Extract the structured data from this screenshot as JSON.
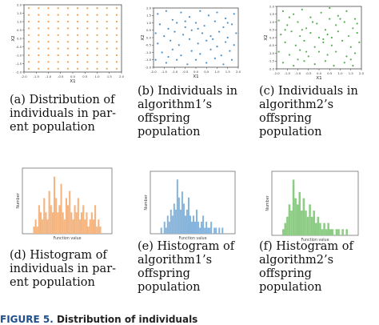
{
  "figure": {
    "label": "FIGURE 5.",
    "title": "Distribution of individuals"
  },
  "chart_data": [
    {
      "type": "scatter",
      "id": "a",
      "xlabel": "X1",
      "ylabel": "X2",
      "xlim": [
        -2,
        2
      ],
      "ylim": [
        -2,
        2
      ],
      "x_ticks": [
        "-2.0",
        "-1.5",
        "-1.0",
        "-0.5",
        "0.0",
        "0.5",
        "1.0",
        "1.5",
        "2.0"
      ],
      "y_ticks": [
        "-2.0",
        "-1.5",
        "-1.0",
        "-0.5",
        "0.0",
        "0.5",
        "1.0",
        "1.5",
        "2.0"
      ],
      "color": "#f0a050",
      "grid_points": {
        "x_start": -1.8,
        "x_step": 0.4,
        "count": 10,
        "y_start": -1.8,
        "y_step": 0.4
      }
    },
    {
      "type": "scatter",
      "id": "b",
      "xlabel": "X1",
      "ylabel": "X2",
      "xlim": [
        -2,
        2
      ],
      "ylim": [
        -2,
        2
      ],
      "x_ticks": [
        "-2.0",
        "-1.5",
        "-1.0",
        "-0.5",
        "0.0",
        "0.5",
        "1.0",
        "1.5",
        "2.0"
      ],
      "y_ticks": [
        "-2.0",
        "-1.5",
        "-1.0",
        "-0.5",
        "0.0",
        "0.5",
        "1.0",
        "1.5",
        "2.0"
      ],
      "color": "#4a90c8",
      "points": [
        [
          -1.8,
          1.6
        ],
        [
          -1.4,
          1.8
        ],
        [
          -1.1,
          1.2
        ],
        [
          -0.7,
          1.7
        ],
        [
          -0.3,
          1.4
        ],
        [
          0.2,
          1.8
        ],
        [
          0.6,
          1.5
        ],
        [
          1.0,
          1.7
        ],
        [
          1.4,
          1.3
        ],
        [
          1.8,
          1.6
        ],
        [
          -1.7,
          0.9
        ],
        [
          -1.3,
          0.6
        ],
        [
          -0.9,
          1.0
        ],
        [
          -0.5,
          0.7
        ],
        [
          0.0,
          1.0
        ],
        [
          0.4,
          0.8
        ],
        [
          0.9,
          1.1
        ],
        [
          1.3,
          0.7
        ],
        [
          1.7,
          0.9
        ],
        [
          -1.9,
          0.3
        ],
        [
          -1.5,
          0.1
        ],
        [
          -1.0,
          0.4
        ],
        [
          -0.6,
          0.2
        ],
        [
          -0.2,
          0.5
        ],
        [
          0.3,
          0.3
        ],
        [
          0.7,
          0.1
        ],
        [
          1.1,
          0.4
        ],
        [
          1.5,
          0.0
        ],
        [
          1.9,
          0.3
        ],
        [
          -1.8,
          -0.4
        ],
        [
          -1.2,
          -0.2
        ],
        [
          -0.8,
          -0.5
        ],
        [
          -0.3,
          -0.1
        ],
        [
          0.1,
          -0.4
        ],
        [
          0.5,
          -0.2
        ],
        [
          1.0,
          -0.6
        ],
        [
          1.4,
          -0.3
        ],
        [
          1.8,
          -0.5
        ],
        [
          -1.6,
          -1.0
        ],
        [
          -1.1,
          -0.8
        ],
        [
          -0.7,
          -1.2
        ],
        [
          -0.2,
          -0.9
        ],
        [
          0.2,
          -1.1
        ],
        [
          0.7,
          -0.8
        ],
        [
          1.2,
          -1.2
        ],
        [
          1.6,
          -0.9
        ],
        [
          -1.9,
          -1.5
        ],
        [
          -1.4,
          -1.7
        ],
        [
          -0.9,
          -1.5
        ],
        [
          -0.4,
          -1.8
        ],
        [
          0.0,
          -1.5
        ],
        [
          0.5,
          -1.7
        ],
        [
          0.9,
          -1.4
        ],
        [
          1.3,
          -1.8
        ],
        [
          1.7,
          -1.5
        ],
        [
          -0.5,
          1.1
        ],
        [
          0.8,
          -0.1
        ],
        [
          -1.3,
          -1.3
        ],
        [
          1.5,
          1.0
        ],
        [
          0.1,
          0.6
        ]
      ]
    },
    {
      "type": "scatter",
      "id": "c",
      "xlabel": "X1",
      "ylabel": "X2",
      "xlim": [
        -2,
        2
      ],
      "ylim": [
        -2,
        2
      ],
      "x_ticks": [
        "-2.0",
        "-1.5",
        "-1.0",
        "-0.5",
        "0.0",
        "0.5",
        "1.0",
        "1.5",
        "2.0"
      ],
      "y_ticks": [
        "-2.0",
        "-1.5",
        "-1.0",
        "-0.5",
        "0.0",
        "0.5",
        "1.0",
        "1.5",
        "2.0"
      ],
      "color": "#55b050",
      "points": [
        [
          -1.7,
          1.7
        ],
        [
          -1.2,
          1.5
        ],
        [
          -0.8,
          1.8
        ],
        [
          -0.4,
          1.3
        ],
        [
          0.1,
          1.6
        ],
        [
          0.5,
          1.9
        ],
        [
          0.9,
          1.4
        ],
        [
          1.3,
          1.7
        ],
        [
          1.7,
          1.2
        ],
        [
          -1.9,
          1.1
        ],
        [
          -1.5,
          0.8
        ],
        [
          -1.0,
          1.0
        ],
        [
          -0.6,
          0.6
        ],
        [
          -0.1,
          0.9
        ],
        [
          0.3,
          0.5
        ],
        [
          0.8,
          0.8
        ],
        [
          1.2,
          1.0
        ],
        [
          1.6,
          0.6
        ],
        [
          -1.8,
          0.2
        ],
        [
          -1.3,
          0.4
        ],
        [
          -0.9,
          0.1
        ],
        [
          -0.4,
          0.3
        ],
        [
          0.0,
          0.0
        ],
        [
          0.4,
          0.2
        ],
        [
          0.9,
          0.4
        ],
        [
          1.4,
          0.1
        ],
        [
          1.8,
          0.3
        ],
        [
          -1.6,
          -0.3
        ],
        [
          -1.1,
          -0.5
        ],
        [
          -0.7,
          -0.2
        ],
        [
          -0.2,
          -0.6
        ],
        [
          0.2,
          -0.3
        ],
        [
          0.6,
          -0.5
        ],
        [
          1.1,
          -0.2
        ],
        [
          1.5,
          -0.6
        ],
        [
          1.9,
          -0.3
        ],
        [
          -1.9,
          -0.9
        ],
        [
          -1.4,
          -1.1
        ],
        [
          -0.9,
          -0.8
        ],
        [
          -0.5,
          -1.2
        ],
        [
          0.0,
          -0.9
        ],
        [
          0.4,
          -1.1
        ],
        [
          0.8,
          -0.9
        ],
        [
          1.3,
          -1.2
        ],
        [
          1.7,
          -1.0
        ],
        [
          -1.7,
          -1.6
        ],
        [
          -1.2,
          -1.8
        ],
        [
          -0.7,
          -1.5
        ],
        [
          -0.2,
          -1.7
        ],
        [
          0.3,
          -1.5
        ],
        [
          0.7,
          -1.8
        ],
        [
          1.2,
          -1.6
        ],
        [
          1.6,
          -1.8
        ],
        [
          -0.3,
          1.0
        ],
        [
          0.6,
          0.0
        ],
        [
          -1.0,
          -1.4
        ],
        [
          1.0,
          1.2
        ],
        [
          0.2,
          -0.1
        ],
        [
          -0.8,
          0.5
        ],
        [
          1.5,
          -1.4
        ],
        [
          -1.4,
          1.3
        ],
        [
          0.5,
          1.2
        ],
        [
          -0.6,
          -0.9
        ],
        [
          1.8,
          0.9
        ],
        [
          -1.6,
          0.5
        ]
      ]
    },
    {
      "type": "bar",
      "id": "d",
      "xlabel": "Function value",
      "ylabel": "Number",
      "color": "#f4b580",
      "values": [
        1,
        2,
        1,
        4,
        3,
        2,
        5,
        3,
        2,
        6,
        4,
        3,
        8,
        5,
        3,
        4,
        7,
        3,
        2,
        5,
        4,
        6,
        3,
        2,
        4,
        3,
        5,
        2,
        3,
        4,
        2,
        3,
        1,
        2,
        3,
        2,
        4,
        1,
        2,
        1
      ]
    },
    {
      "type": "bar",
      "id": "e",
      "xlabel": "Function value",
      "ylabel": "Number",
      "color": "#86b4dc",
      "values": [
        1,
        0,
        2,
        1,
        3,
        2,
        4,
        3,
        5,
        4,
        9,
        6,
        4,
        7,
        5,
        3,
        4,
        6,
        3,
        2,
        3,
        2,
        4,
        2,
        1,
        2,
        3,
        1,
        2,
        1,
        1,
        2,
        0,
        1,
        1,
        0,
        1,
        0,
        1,
        0
      ]
    },
    {
      "type": "bar",
      "id": "f",
      "xlabel": "Function value",
      "ylabel": "Number",
      "color": "#8ccc84",
      "values": [
        1,
        2,
        3,
        5,
        4,
        9,
        6,
        5,
        7,
        4,
        6,
        4,
        3,
        5,
        3,
        4,
        2,
        3,
        2,
        1,
        2,
        1,
        2,
        1,
        1,
        0,
        1,
        1,
        0,
        1,
        0,
        1
      ]
    }
  ],
  "captions": [
    {
      "id": "a",
      "lines": [
        "(a) Distribution of",
        "individuals in par-",
        "ent population"
      ]
    },
    {
      "id": "b",
      "lines": [
        "(b) Individuals in",
        "algorithm1’s",
        "offspring",
        "population"
      ]
    },
    {
      "id": "c",
      "lines": [
        "(c) Individuals in",
        "algorithm2’s",
        "offspring",
        "population"
      ]
    },
    {
      "id": "d",
      "lines": [
        "(d) Histogram of",
        "individuals in par-",
        "ent population"
      ]
    },
    {
      "id": "e",
      "lines": [
        "(e) Histogram of",
        "algorithm1’s",
        "offspring",
        "population"
      ]
    },
    {
      "id": "f",
      "lines": [
        "(f) Histogram of",
        "algorithm2’s",
        "offspring",
        "population"
      ]
    }
  ]
}
